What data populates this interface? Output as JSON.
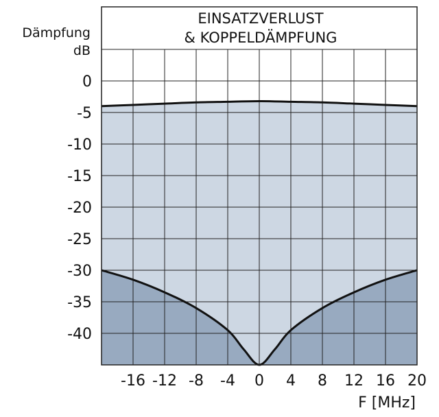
{
  "chart_data": {
    "type": "area",
    "title_lines": [
      "EINSATZVERLUST",
      "& KOPPELDÄMPFUNG"
    ],
    "ylabel_lines": [
      "Dämpfung",
      "dB"
    ],
    "xlabel": "F [MHz]",
    "xlim": [
      -20,
      20
    ],
    "ylim": [
      -45,
      0
    ],
    "ylim_display_top": 0,
    "x_grid_step": 4,
    "y_grid_step": 5,
    "y_ticks": [
      0,
      -5,
      -10,
      -15,
      -20,
      -25,
      -30,
      -35,
      -40
    ],
    "x_ticks": [
      -16,
      -12,
      -8,
      -4,
      0,
      4,
      8,
      12,
      16,
      20
    ],
    "grid": true,
    "colors": {
      "upper_fill": "#cdd7e3",
      "lower_fill": "#98aac0",
      "curve": "#111111",
      "grid": "#222222"
    },
    "series": [
      {
        "name": "Einsatzverlust",
        "x": [
          -20,
          -16,
          -12,
          -8,
          -4,
          0,
          4,
          8,
          12,
          16,
          20
        ],
        "values": [
          -4.0,
          -3.8,
          -3.6,
          -3.4,
          -3.3,
          -3.2,
          -3.3,
          -3.4,
          -3.6,
          -3.8,
          -4.0
        ]
      },
      {
        "name": "Koppeldämpfung",
        "x": [
          -20,
          -16,
          -12,
          -8,
          -4,
          -2,
          0,
          2,
          4,
          8,
          12,
          16,
          20
        ],
        "values": [
          -30,
          -31.5,
          -33.5,
          -36,
          -39.5,
          -42.5,
          -45,
          -42.5,
          -39.5,
          -36,
          -33.5,
          -31.5,
          -30
        ]
      }
    ]
  }
}
